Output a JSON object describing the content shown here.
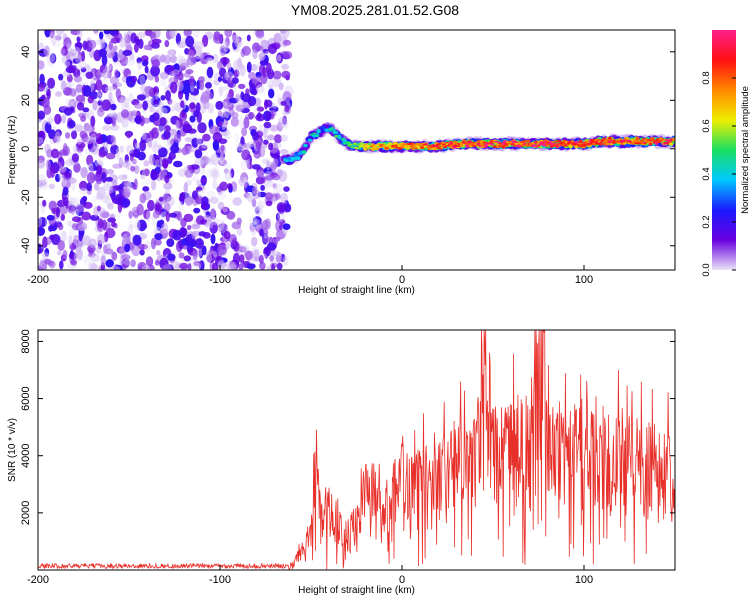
{
  "title": "YM08.2025.281.01.52.G08",
  "chart_data": [
    {
      "type": "heatmap",
      "description_kind": "spectrogram",
      "xlabel": "Height of straight line (km)",
      "ylabel": "Frequency (Hz)",
      "xlim": [
        -200,
        150
      ],
      "ylim": [
        -50,
        49
      ],
      "xticks": [
        -200,
        -100,
        0,
        100
      ],
      "yticks": [
        -40,
        -20,
        0,
        20,
        40
      ],
      "colorbar": {
        "label": "Normalized spectral amplitude",
        "range": [
          0,
          1
        ],
        "ticks": [
          0.0,
          0.2,
          0.4,
          0.6,
          0.8
        ],
        "tick_labels": [
          "0.0",
          "0.2",
          "0.4",
          "0.6",
          "0.8"
        ],
        "colors": [
          "#e9e4f7",
          "#6a00e0",
          "#1a1aff",
          "#00c8ff",
          "#18e060",
          "#f0ee00",
          "#ff8800",
          "#ff1010",
          "#ff1f8c"
        ]
      },
      "noise_region_km": [
        -200,
        -62
      ],
      "noise_amplitude": [
        0.0,
        0.22
      ],
      "ridge": {
        "height_km": [
          -65,
          -60,
          -55,
          -50,
          -45,
          -40,
          -35,
          -30,
          -25,
          -20,
          -10,
          0,
          10,
          20,
          30,
          40,
          50,
          60,
          70,
          80,
          90,
          100,
          110,
          120,
          130,
          140,
          150
        ],
        "frequency_hz": [
          -5,
          -4,
          -2,
          5,
          7,
          9,
          5,
          2,
          1,
          1,
          1,
          1,
          1,
          1,
          2,
          2,
          2,
          2,
          2,
          2,
          2,
          2,
          3,
          3,
          3,
          3,
          3
        ],
        "peak_amplitude": [
          0.4,
          0.45,
          0.5,
          0.45,
          0.5,
          0.45,
          0.5,
          0.55,
          0.6,
          0.75,
          0.8,
          0.85,
          0.85,
          0.9,
          0.9,
          0.95,
          0.95,
          0.95,
          0.95,
          0.95,
          0.95,
          0.95,
          0.95,
          0.95,
          0.95,
          0.95,
          0.95
        ]
      }
    },
    {
      "type": "line",
      "xlabel": "Height of straight line (km)",
      "ylabel": "SNR (10 * v/v)",
      "xlim": [
        -200,
        150
      ],
      "ylim": [
        0,
        8400
      ],
      "xticks": [
        -200,
        -100,
        0,
        100
      ],
      "yticks": [
        2000,
        4000,
        6000,
        8000
      ],
      "series": [
        {
          "name": "SNR",
          "color": "#e8302a",
          "x": [
            -200,
            -180,
            -160,
            -140,
            -120,
            -100,
            -80,
            -65,
            -60,
            -55,
            -50,
            -47,
            -45,
            -40,
            -35,
            -30,
            -25,
            -20,
            -15,
            -10,
            -5,
            0,
            5,
            10,
            20,
            30,
            40,
            45,
            50,
            60,
            70,
            78,
            80,
            90,
            100,
            110,
            120,
            130,
            140,
            150
          ],
          "y": [
            150,
            150,
            150,
            150,
            150,
            150,
            150,
            150,
            250,
            700,
            1500,
            3600,
            1900,
            2200,
            1600,
            1300,
            1700,
            2700,
            2300,
            1900,
            2800,
            3200,
            3000,
            3100,
            3300,
            3800,
            4000,
            7400,
            4300,
            4200,
            4400,
            8400,
            4300,
            4200,
            4100,
            4000,
            3900,
            3800,
            3700,
            3600
          ]
        }
      ],
      "grid": false
    }
  ]
}
